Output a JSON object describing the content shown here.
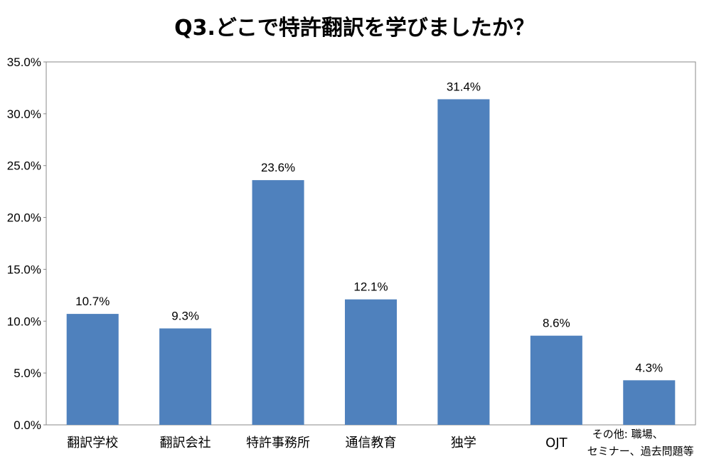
{
  "chart_data": {
    "type": "bar",
    "title": "Q3.どこで特許翻訳を学びましたか？",
    "categories": [
      [
        "翻訳学校"
      ],
      [
        "翻訳会社"
      ],
      [
        "特許事務所"
      ],
      [
        "通信教育"
      ],
      [
        "独学"
      ],
      [
        "OJT"
      ],
      [
        "その他: 職場、",
        "セミナー、過去問題等"
      ]
    ],
    "values": [
      10.7,
      9.3,
      23.6,
      12.1,
      31.4,
      8.6,
      4.3
    ],
    "data_labels": [
      "10.7%",
      "9.3%",
      "23.6%",
      "12.1%",
      "31.4%",
      "8.6%",
      "4.3%"
    ],
    "y_ticks": [
      "0.0%",
      "5.0%",
      "10.0%",
      "15.0%",
      "20.0%",
      "25.0%",
      "30.0%",
      "35.0%"
    ],
    "ylim": [
      0,
      35
    ],
    "grid": false,
    "legend": "none",
    "bar_color": "#4f81bd"
  }
}
